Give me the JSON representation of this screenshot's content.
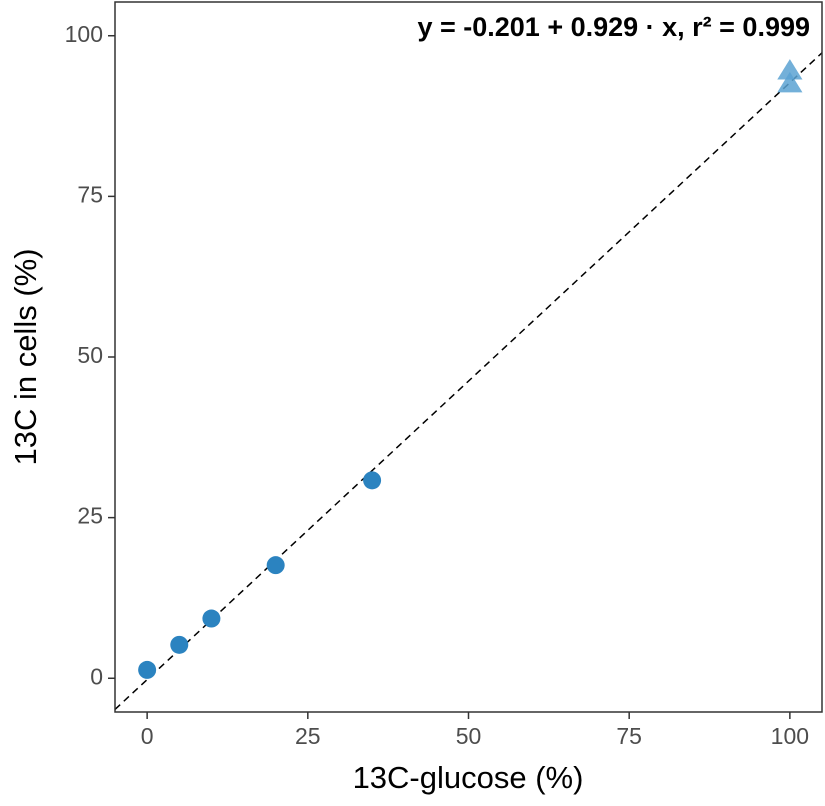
{
  "chart_data": {
    "type": "scatter",
    "x_label": "13C-glucose (%)",
    "y_label": "13C in cells (%)",
    "annotation": "y = -0.201 + 0.929 · x,  r² = 0.999",
    "fit": {
      "intercept": -0.201,
      "slope": 0.929,
      "color": "#000000",
      "dashed": true
    },
    "series": [
      {
        "marker": "circle",
        "color": "#2b83c0",
        "x": [
          0,
          5,
          10,
          20,
          35
        ],
        "values": [
          1.3,
          5.2,
          9.3,
          17.6,
          30.8
        ]
      },
      {
        "marker": "triangle",
        "color": "#5aa2d2",
        "x": [
          100,
          100
        ],
        "values": [
          94.5,
          92.5
        ]
      }
    ],
    "xlim": [
      -5,
      105
    ],
    "ylim": [
      -5.25,
      105.25
    ],
    "xticks": [
      0,
      25,
      50,
      75,
      100
    ],
    "yticks": [
      0,
      25,
      50,
      75,
      100
    ],
    "grid": false,
    "border": true
  }
}
